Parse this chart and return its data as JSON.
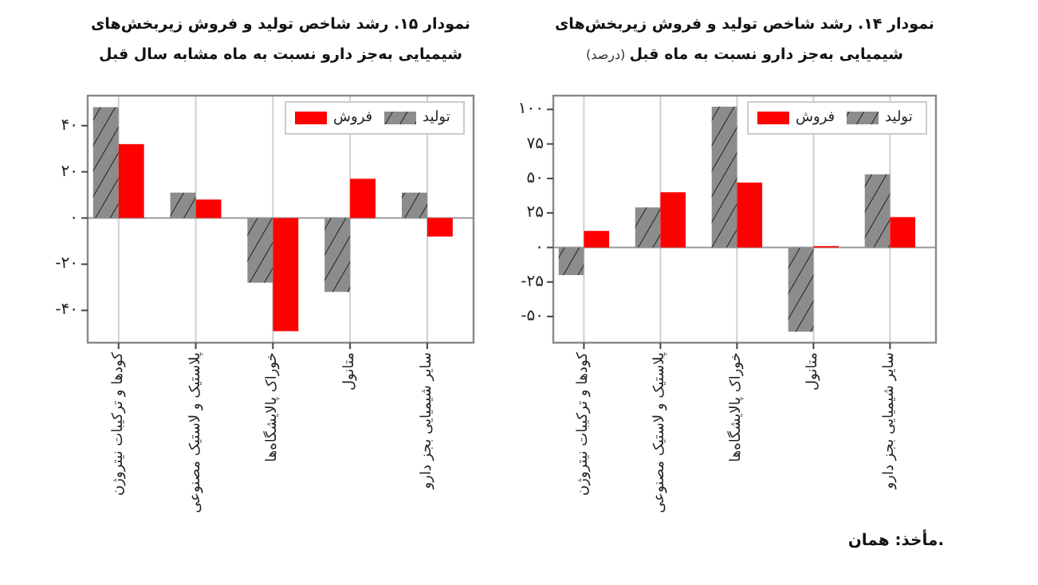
{
  "chart_data": [
    {
      "type": "bar",
      "title": "نمودار ۱۴. رشد شاخص تولید و فروش زیربخش‌های شیمیایی به‌جز دارو نسبت به ماه قبل",
      "subtitle": "(درصد)",
      "categories": [
        "کودها و ترکیبات نیتروژن",
        "پلاستیک و لاستیک مصنوعی",
        "خوراک پالایشگاه‌ها",
        "متانول",
        "سایر شیمیایی بجز دارو"
      ],
      "series": [
        {
          "name": "تولید",
          "color": "#8c8c8c",
          "values": [
            -20,
            29,
            102,
            -61,
            53
          ]
        },
        {
          "name": "فروش",
          "color": "#ff0000",
          "values": [
            12,
            40,
            47,
            1,
            22
          ]
        }
      ],
      "ylim": [
        -69,
        110
      ],
      "yticks": [
        {
          "value": 100,
          "label": "۱۰۰"
        },
        {
          "value": 75,
          "label": "۷۵"
        },
        {
          "value": 50,
          "label": "۵۰"
        },
        {
          "value": 25,
          "label": "۲۵"
        },
        {
          "value": 0,
          "label": "۰"
        },
        {
          "value": -25,
          "label": "-۲۵"
        },
        {
          "value": -50,
          "label": "-۵۰"
        }
      ],
      "grid": "x",
      "legend": "top right",
      "annotations": [
        "مأخذ: همان."
      ]
    },
    {
      "type": "bar",
      "title": "نمودار ۱۵. رشد شاخص تولید و فروش زیربخش‌های شیمیایی به‌جز دارو نسبت به ماه مشابه سال قبل",
      "categories": [
        "کودها و ترکیبات نیتروژن",
        "پلاستیک و لاستیک مصنوعی",
        "خوراک پالایشگاه‌ها",
        "متانول",
        "سایر شیمیایی بجز دارو"
      ],
      "series": [
        {
          "name": "تولید",
          "color": "#8c8c8c",
          "values": [
            48,
            11,
            -28,
            -32,
            11
          ]
        },
        {
          "name": "فروش",
          "color": "#ff0000",
          "values": [
            32,
            8,
            -49,
            17,
            -8
          ]
        }
      ],
      "ylim": [
        -54,
        53
      ],
      "yticks": [
        {
          "value": 40,
          "label": "۴۰"
        },
        {
          "value": 20,
          "label": "۲۰"
        },
        {
          "value": 0,
          "label": "۰"
        },
        {
          "value": -20,
          "label": "-۲۰"
        },
        {
          "value": -40,
          "label": "-۴۰"
        }
      ],
      "grid": "x",
      "legend": "top right"
    }
  ]
}
